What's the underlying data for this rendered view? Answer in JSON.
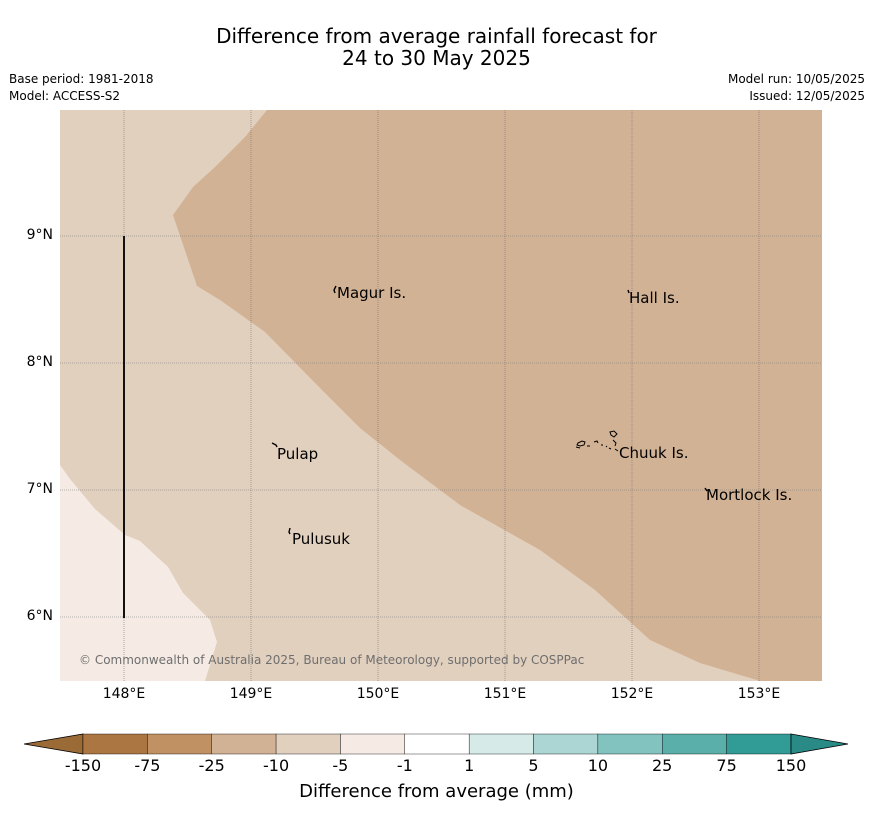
{
  "title_line1": "Difference from average rainfall forecast for",
  "title_line2": "24 to 30 May 2025",
  "base_period": "Base period: 1981-2018",
  "model": "Model: ACCESS-S2",
  "model_run": "Model run: 10/05/2025",
  "issued": "Issued: 12/05/2025",
  "copyright": "© Commonwealth of Australia 2025, Bureau of Meteorology, supported by COSPPac",
  "lat_labels": [
    "9°N",
    "8°N",
    "7°N",
    "6°N"
  ],
  "lon_labels": [
    "148°E",
    "149°E",
    "150°E",
    "151°E",
    "152°E",
    "153°E"
  ],
  "places": {
    "magur": "Magur Is.",
    "hall": "Hall Is.",
    "pulap": "Pulap",
    "chuuk": "Chuuk Is.",
    "mortlock": "Mortlock Is.",
    "pulusuk": "Pulusuk"
  },
  "colorbar": {
    "ticks": [
      "-150",
      "-75",
      "-25",
      "-10",
      "-5",
      "-1",
      "1",
      "5",
      "10",
      "25",
      "75",
      "150"
    ],
    "colors": [
      "#ab7641",
      "#c09163",
      "#d2b294",
      "#e2d0bf",
      "#f5ebe4",
      "#ffffff",
      "#d6ebe8",
      "#acd6d3",
      "#83c3bf",
      "#5aafab",
      "#319b95"
    ],
    "under_color": "#9a6a37",
    "over_color": "#2a8a85",
    "label": "Difference from average (mm)"
  },
  "field_colors": {
    "minus_25_to_10": "#d2b294",
    "minus_10_to_5": "#e2d0bf",
    "minus_5_to_1": "#f5ebe4"
  }
}
